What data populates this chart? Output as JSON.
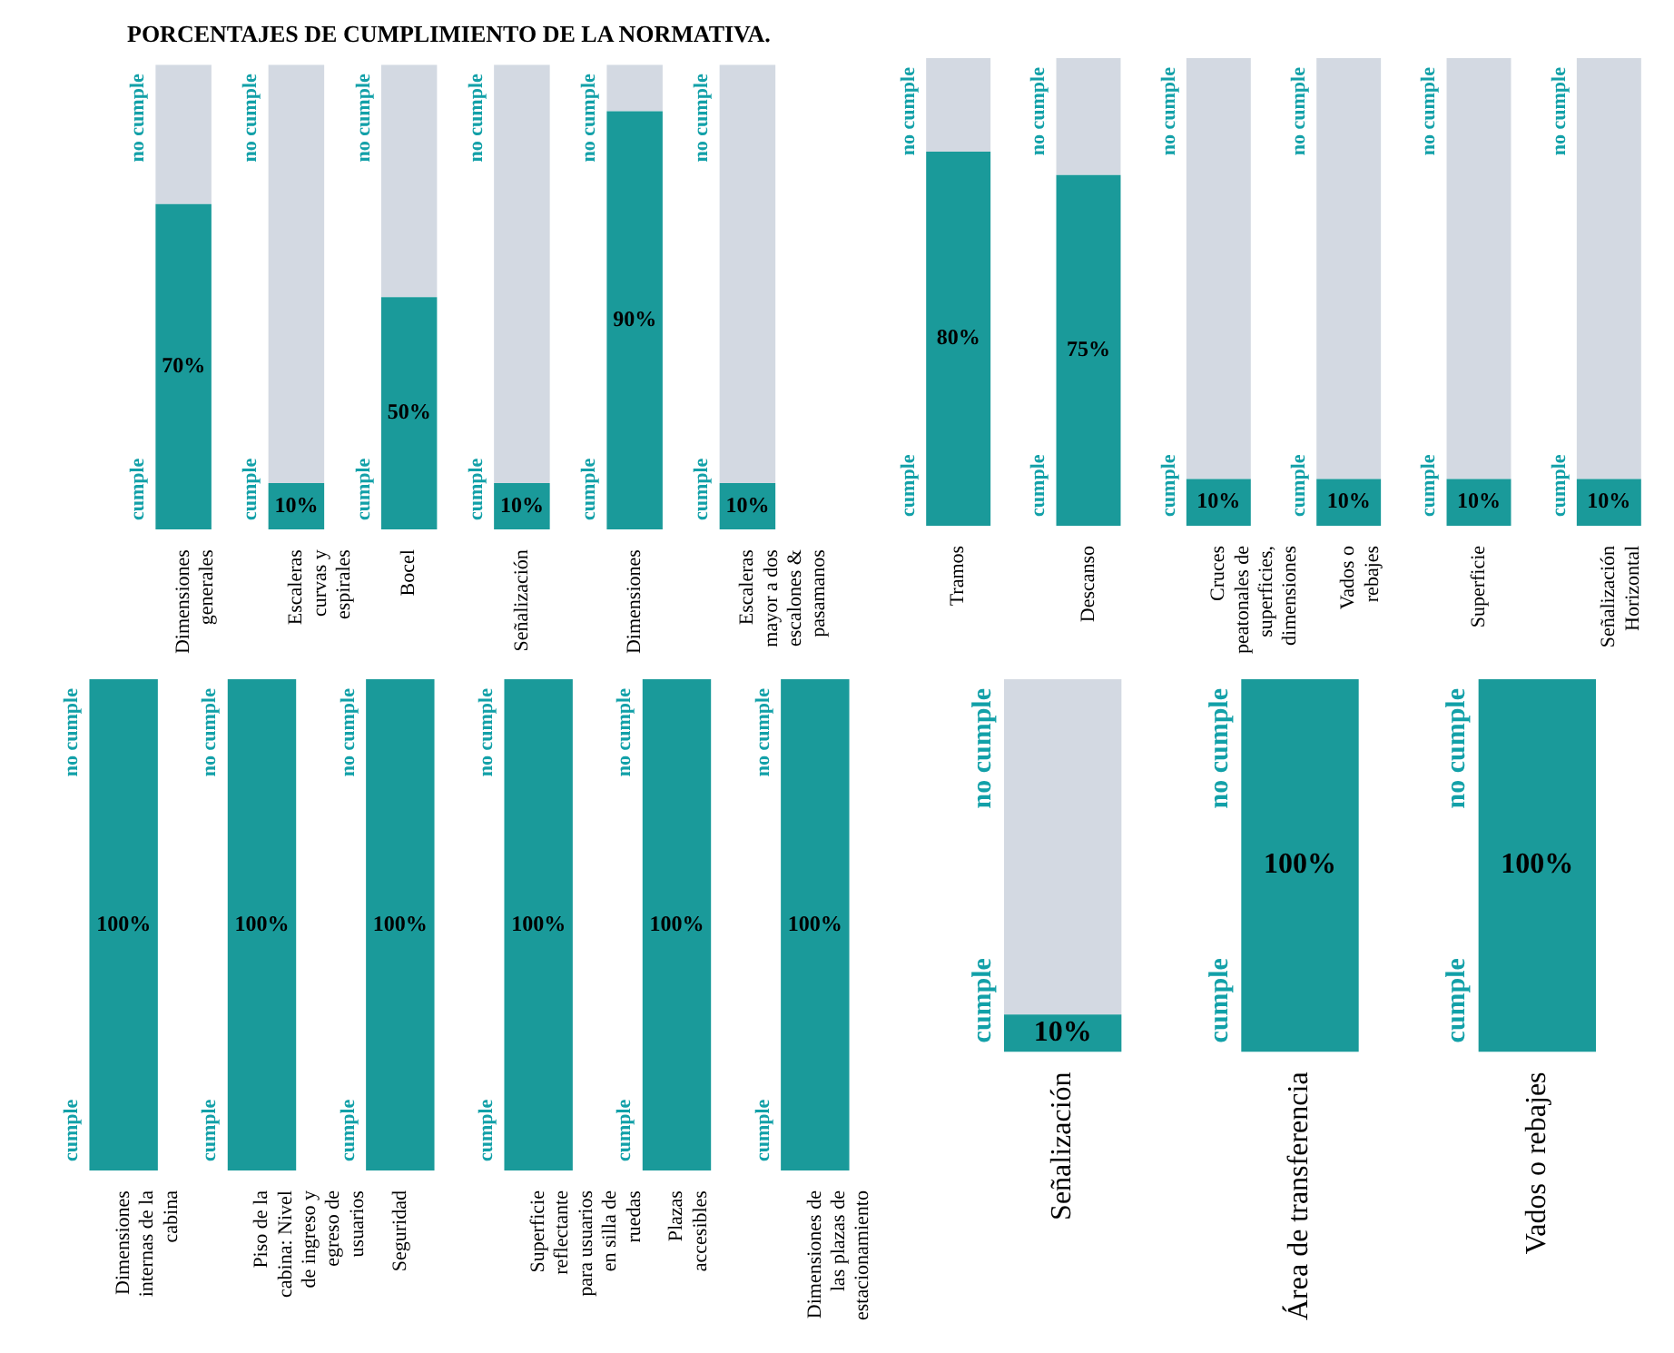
{
  "chart_data": [
    {
      "type": "bar",
      "title": "PORCENTAJES DE CUMPLIMIENTO DE LA NORMATIVA.",
      "categories": [
        "Dimensiones generales",
        "Escaleras curvas y espirales",
        "Bocel",
        "Señalización",
        "Dimensiones",
        "Escaleras mayor a dos escalones & pasamanos"
      ],
      "stacked": true,
      "ylim": [
        0,
        100
      ],
      "tick_labels": "x",
      "legend": false,
      "grid": false,
      "series": [
        {
          "name": "cumple",
          "color": "#1a9a9a",
          "values": [
            70,
            10,
            50,
            10,
            90,
            10
          ],
          "value_labels": [
            "70%",
            "10%",
            "50%",
            "10%",
            "90%",
            "10%"
          ]
        },
        {
          "name": "no cumple",
          "color": "#d3d9e2",
          "values": [
            30,
            90,
            50,
            90,
            10,
            90
          ]
        }
      ]
    },
    {
      "type": "bar",
      "categories": [
        "Tramos",
        "Descanso",
        "Cruces peatonales de superficies, dimensiones",
        "Vados o rebajes",
        "Superficie",
        "Señalización Horizontal"
      ],
      "stacked": true,
      "ylim": [
        0,
        100
      ],
      "tick_labels": "x",
      "legend": false,
      "grid": false,
      "series": [
        {
          "name": "cumple",
          "color": "#1a9a9a",
          "values": [
            80,
            75,
            10,
            10,
            10,
            10
          ],
          "value_labels": [
            "80%",
            "75%",
            "10%",
            "10%",
            "10%",
            "10%"
          ]
        },
        {
          "name": "no cumple",
          "color": "#d3d9e2",
          "values": [
            20,
            25,
            90,
            90,
            90,
            90
          ]
        }
      ]
    },
    {
      "type": "bar",
      "categories": [
        "Dimensiones internas de la cabina",
        "Piso de la cabina: Nivel de ingreso y egreso de usuarios",
        "Seguridad",
        "Superficie reflectante para usuarios en silla de ruedas",
        "Plazas accesibles",
        "Dimensiones de las plazas de estacionamiento"
      ],
      "stacked": true,
      "ylim": [
        0,
        100
      ],
      "tick_labels": "x",
      "legend": false,
      "grid": false,
      "series": [
        {
          "name": "cumple",
          "color": "#1a9a9a",
          "values": [
            100,
            100,
            100,
            100,
            100,
            100
          ],
          "value_labels": [
            "100%",
            "100%",
            "100%",
            "100%",
            "100%",
            "100%"
          ]
        },
        {
          "name": "no cumple",
          "values": [
            0,
            0,
            0,
            0,
            0,
            0
          ]
        }
      ]
    },
    {
      "type": "bar",
      "categories": [
        "Señalización",
        "Área de transferencia",
        "Vados o rebajes"
      ],
      "stacked": true,
      "ylim": [
        0,
        100
      ],
      "tick_labels": "x",
      "legend": false,
      "grid": false,
      "series": [
        {
          "name": "cumple",
          "color": "#1a9a9a",
          "values": [
            10,
            100,
            100
          ],
          "value_labels": [
            "10%",
            "100%",
            "100%"
          ]
        },
        {
          "name": "no cumple",
          "color": "#d3d9e2",
          "values": [
            90,
            0,
            0
          ]
        }
      ]
    }
  ]
}
